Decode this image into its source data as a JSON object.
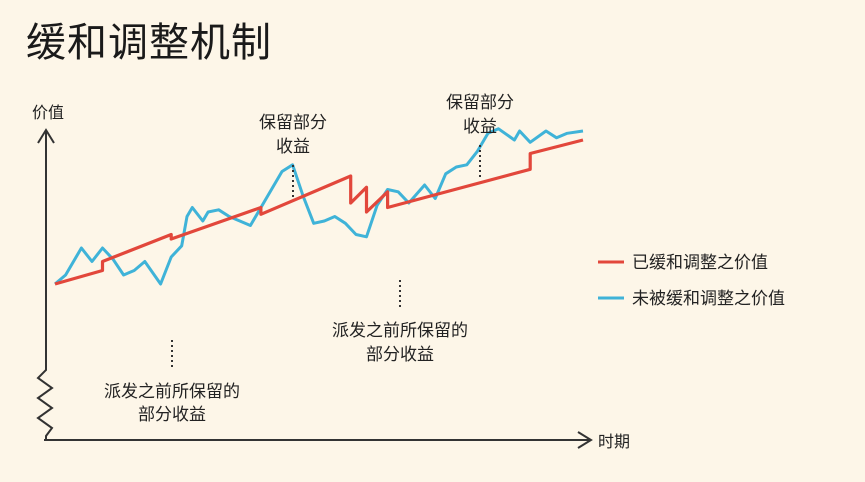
{
  "title": "缓和调整机制",
  "chart_data": {
    "type": "line",
    "title": "缓和调整机制",
    "xlabel": "时期",
    "ylabel": "价值",
    "xlim": [
      0,
      100
    ],
    "ylim": [
      0,
      100
    ],
    "grid": false,
    "legend_position": "right",
    "colors": {
      "smoothed": "#e2473b",
      "unsmoothed": "#3fb3d8",
      "axis": "#333333"
    },
    "series": [
      {
        "name": "已缓和调整之价值",
        "x": [
          0,
          9,
          9,
          22,
          22,
          39,
          39,
          56,
          56,
          59,
          59,
          63,
          63,
          90,
          90,
          100
        ],
        "y": [
          36,
          42,
          46,
          58,
          56,
          70,
          67,
          84,
          72,
          79,
          68,
          77,
          70,
          87,
          94,
          100
        ]
      },
      {
        "name": "未被缓和调整之价值",
        "x": [
          0,
          2,
          5,
          7,
          9,
          11,
          13,
          15,
          17,
          20,
          22,
          24,
          25,
          26,
          28,
          29,
          31,
          33,
          35,
          37,
          40,
          43,
          45,
          47,
          49,
          51,
          53,
          55,
          57,
          59,
          61,
          63,
          65,
          67,
          70,
          72,
          74,
          76,
          78,
          80,
          82,
          84,
          87,
          88,
          90,
          93,
          95,
          97,
          100
        ],
        "y": [
          36,
          40,
          52,
          46,
          52,
          47,
          40,
          42,
          46,
          36,
          48,
          53,
          66,
          70,
          64,
          68,
          69,
          66,
          64,
          62,
          74,
          86,
          89,
          75,
          63,
          64,
          66,
          63,
          58,
          57,
          71,
          78,
          77,
          72,
          80,
          74,
          85,
          88,
          89,
          95,
          103,
          105,
          100,
          104,
          99,
          104,
          101,
          103,
          104
        ]
      }
    ],
    "annotations": [
      {
        "id": "pre-release-1",
        "lines": [
          "派发之前所保留的",
          "部分收益"
        ],
        "x": 16,
        "y": 43
      },
      {
        "id": "retained-1",
        "lines": [
          "保留部分",
          "收益"
        ],
        "x": 34,
        "y": 76
      },
      {
        "id": "pre-release-2",
        "lines": [
          "派发之前所保留的",
          "部分收益"
        ],
        "x": 48,
        "y": 61
      },
      {
        "id": "retained-2",
        "lines": [
          "保留部分",
          "收益"
        ],
        "x": 77,
        "y": 89
      }
    ]
  }
}
